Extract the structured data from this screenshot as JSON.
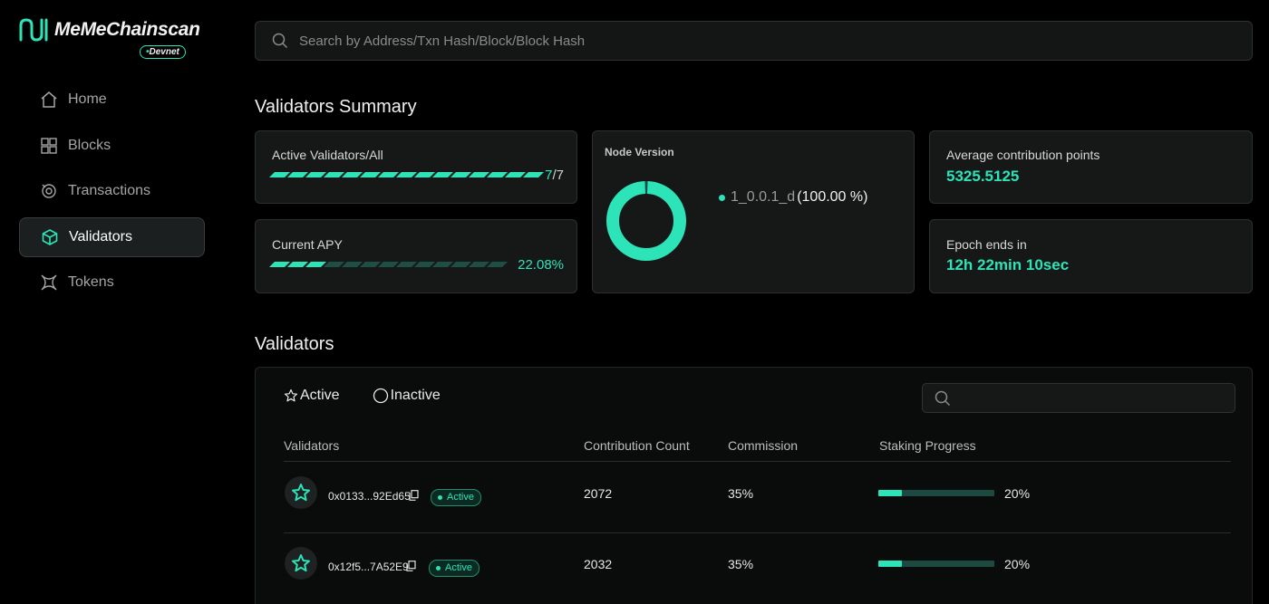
{
  "brand": {
    "name": "MeMeChainscan",
    "network": "Devnet",
    "accent": "#2de3b8"
  },
  "nav": [
    {
      "label": "Home",
      "icon": "home-icon"
    },
    {
      "label": "Blocks",
      "icon": "blocks-icon"
    },
    {
      "label": "Transactions",
      "icon": "transactions-icon"
    },
    {
      "label": "Validators",
      "icon": "cube-icon",
      "active": true
    },
    {
      "label": "Tokens",
      "icon": "tokens-icon"
    }
  ],
  "search": {
    "placeholder": "Search by Address/Txn Hash/Block/Block Hash"
  },
  "summary": {
    "title": "Validators Summary",
    "active_validators": {
      "label": "Active Validators/All",
      "active": "7",
      "all": "7"
    },
    "apy": {
      "label": "Current APY",
      "value": "22.08%",
      "fraction": 0.2208
    },
    "node_version": {
      "label": "Node Version",
      "version": "1_0.0.1_d",
      "share": "(100.00 %)",
      "fraction": 1.0
    },
    "avg_points": {
      "label": "Average contribution points",
      "value": "5325.5125"
    },
    "epoch": {
      "label": "Epoch ends in",
      "value": "12h 22min 10sec"
    }
  },
  "validators": {
    "title": "Validators",
    "tabs": [
      {
        "label": "Active",
        "icon": "star-icon"
      },
      {
        "label": "Inactive",
        "icon": "circle-icon"
      }
    ],
    "columns": [
      "Validators",
      "Contribution Count",
      "Commission",
      "Staking Progress"
    ],
    "rows": [
      {
        "address": "0x0133...92Ed65",
        "status": "Active",
        "contribution": "2072",
        "commission": "35%",
        "progress": "20%",
        "fraction": 0.2
      },
      {
        "address": "0x12f5...7A52E9",
        "status": "Active",
        "contribution": "2032",
        "commission": "35%",
        "progress": "20%",
        "fraction": 0.2
      }
    ]
  }
}
